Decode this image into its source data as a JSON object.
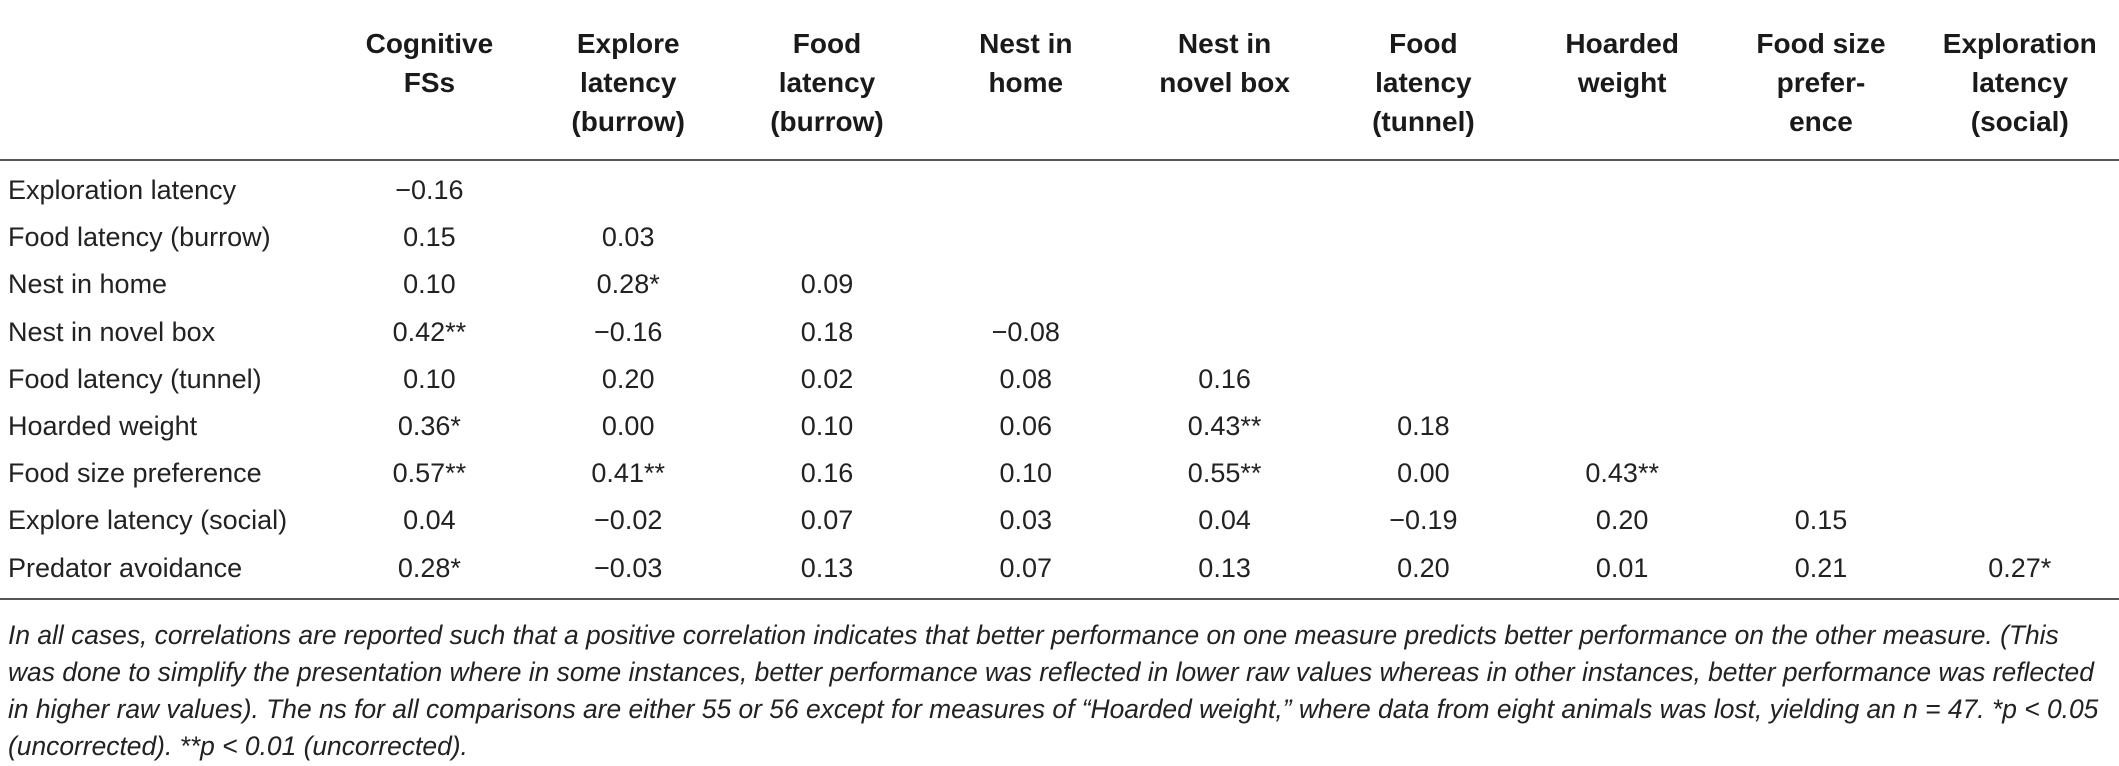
{
  "table": {
    "columns": [
      [
        "Cognitive",
        "FSs"
      ],
      [
        "Explore",
        "latency",
        "(burrow)"
      ],
      [
        "Food",
        "latency",
        "(burrow)"
      ],
      [
        "Nest in",
        "home"
      ],
      [
        "Nest in",
        "novel box"
      ],
      [
        "Food",
        "latency",
        "(tunnel)"
      ],
      [
        "Hoarded",
        "weight"
      ],
      [
        "Food size",
        "prefer-",
        "ence"
      ],
      [
        "Exploration",
        "latency",
        "(social)"
      ]
    ],
    "rows": [
      {
        "label": "Exploration latency",
        "values": [
          "−0.16"
        ]
      },
      {
        "label": "Food latency (burrow)",
        "values": [
          "0.15",
          "0.03"
        ]
      },
      {
        "label": "Nest in home",
        "values": [
          "0.10",
          "0.28*",
          "0.09"
        ]
      },
      {
        "label": "Nest in novel box",
        "values": [
          "0.42**",
          "−0.16",
          "0.18",
          "−0.08"
        ]
      },
      {
        "label": "Food latency (tunnel)",
        "values": [
          "0.10",
          "0.20",
          "0.02",
          "0.08",
          "0.16"
        ]
      },
      {
        "label": "Hoarded weight",
        "values": [
          "0.36*",
          "0.00",
          "0.10",
          "0.06",
          "0.43**",
          "0.18"
        ]
      },
      {
        "label": "Food size preference",
        "values": [
          "0.57**",
          "0.41**",
          "0.16",
          "0.10",
          "0.55**",
          "0.00",
          "0.43**"
        ]
      },
      {
        "label": "Explore latency (social)",
        "values": [
          "0.04",
          "−0.02",
          "0.07",
          "0.03",
          "0.04",
          "−0.19",
          "0.20",
          "0.15"
        ]
      },
      {
        "label": "Predator avoidance",
        "values": [
          "0.28*",
          "−0.03",
          "0.13",
          "0.07",
          "0.13",
          "0.20",
          "0.01",
          "0.21",
          "0.27*"
        ]
      }
    ]
  },
  "footnote": "In all cases, correlations are reported such that a positive correlation indicates that better performance on one measure predicts better performance on the other measure. (This was done to simplify the presentation where in some instances, better performance was reflected in lower raw values whereas in other instances, better performance was reflected in higher raw values). The ns for all comparisons are either 55 or 56 except for measures of “Hoarded weight,” where data from eight animals was lost, yielding an n = 47. *p < 0.05 (uncorrected). **p < 0.01 (uncorrected)."
}
